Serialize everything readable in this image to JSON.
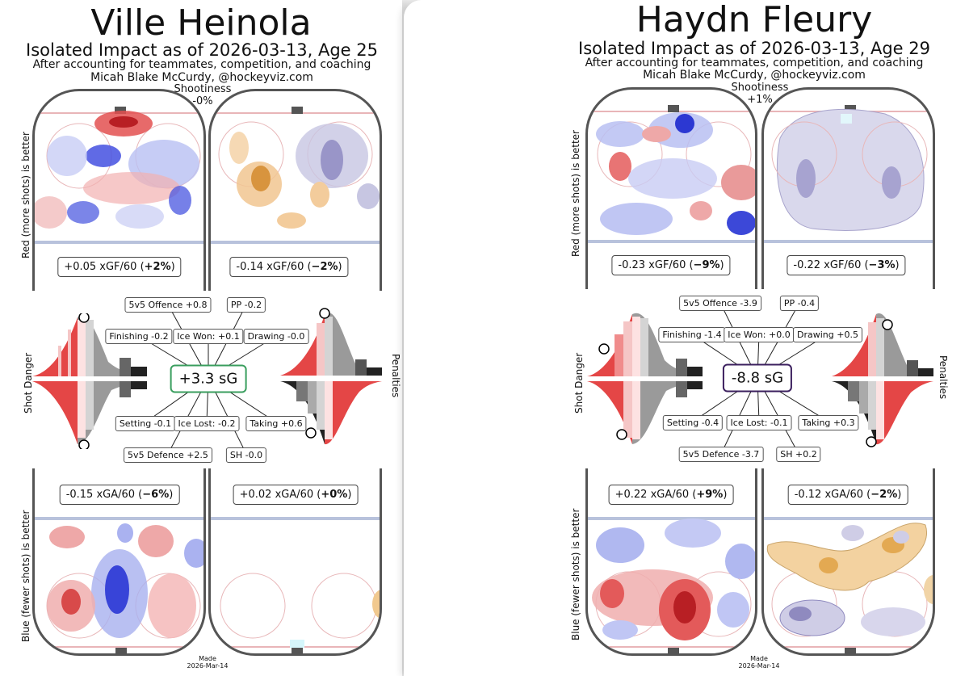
{
  "players": [
    {
      "name": "Ville Heinola",
      "subtitle": "Isolated Impact as of 2026-03-13, Age 25",
      "note": "After accounting for teammates, competition, and coaching",
      "credit": "Micah Blake McCurdy, @hockeyviz.com",
      "shootiness_label": "Shootiness",
      "shootiness_value": "-0%",
      "ev_offence_rate": "+0.05 xGF/60 (",
      "ev_offence_pct": "+2%",
      "pp_offence_rate": "-0.14 xGF/60 (",
      "pp_offence_pct": "−2%",
      "ev_defence_rate": "-0.15 xGA/60 (",
      "ev_defence_pct": "−6%",
      "pk_defence_rate": "+0.02 xGA/60 (",
      "pk_defence_pct": "+0%",
      "total": "+3.3 sG",
      "total_color": "#3a9e5e",
      "components": {
        "offence": "5v5 Offence +0.8",
        "pp": "PP -0.2",
        "finishing": "Finishing -0.2",
        "ice_won": "Ice Won: +0.1",
        "drawing": "Drawing -0.0",
        "setting": "Setting -0.1",
        "ice_lost": "Ice Lost: -0.2",
        "taking": "Taking +0.6",
        "defence": "5v5 Defence +2.5",
        "sh": "SH -0.0"
      },
      "shot_danger_label": "Shot Danger",
      "penalties_label": "Penalties",
      "red_label": "Red (more shots) is better",
      "blue_label": "Blue (fewer shots) is better",
      "made_label": "Made",
      "made_date": "2026-Mar-14",
      "marker_levels": {
        "shot_for": 0.9,
        "shot_against": 0.95,
        "pen_drawn": 0.92,
        "pen_taken": 0.7
      }
    },
    {
      "name": "Haydn Fleury",
      "subtitle": "Isolated Impact as of 2026-03-13, Age 29",
      "note": "After accounting for teammates, competition, and coaching",
      "credit": "Micah Blake McCurdy, @hockeyviz.com",
      "shootiness_label": "Shootiness",
      "shootiness_value": "+1%",
      "ev_offence_rate": "-0.23 xGF/60 (",
      "ev_offence_pct": "−9%",
      "pp_offence_rate": "-0.22 xGF/60 (",
      "pp_offence_pct": "−3%",
      "ev_defence_rate": "+0.22 xGA/60 (",
      "ev_defence_pct": "+9%",
      "pk_defence_rate": "-0.12 xGA/60 (",
      "pk_defence_pct": "−2%",
      "total": "-8.8 sG",
      "total_color": "#3b1f5e",
      "components": {
        "offence": "5v5 Offence -3.9",
        "pp": "PP -0.4",
        "finishing": "Finishing -1.4",
        "ice_won": "Ice Won: +0.0",
        "drawing": "Drawing +0.5",
        "setting": "Setting -0.4",
        "ice_lost": "Ice Lost: -0.1",
        "taking": "Taking +0.3",
        "defence": "5v5 Defence -3.7",
        "sh": "SH +0.2"
      },
      "shot_danger_label": "Shot Danger",
      "penalties_label": "Penalties",
      "red_label": "Red (more shots) is better",
      "blue_label": "Blue (fewer shots) is better",
      "made_label": "Made",
      "made_date": "2026-Mar-14",
      "marker_levels": {
        "shot_for": 0.4,
        "shot_against": 0.78,
        "pen_drawn": 0.67,
        "pen_taken": 0.88
      }
    }
  ],
  "colors": {
    "red": "#d9383a",
    "blue": "#2f3fd6",
    "orange": "#e7a24a",
    "lavender": "#7c78b8"
  }
}
